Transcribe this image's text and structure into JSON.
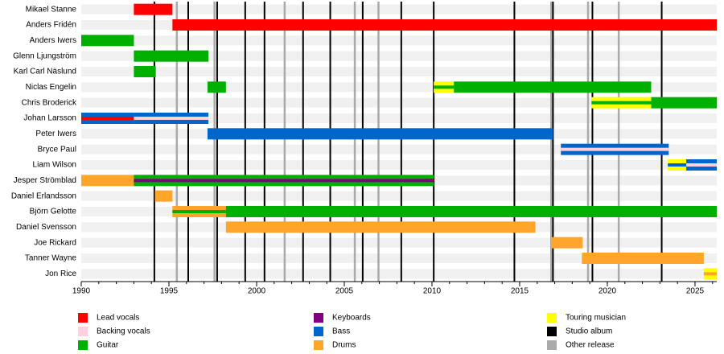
{
  "chart_data": {
    "type": "timeline",
    "xlim": [
      1990,
      2026.24
    ],
    "xticks": [
      1990,
      1995,
      2000,
      2005,
      2010,
      2015,
      2020,
      2025
    ],
    "members": [
      {
        "name": "Mikael Stanne",
        "bars": [
          {
            "role": "Lead vocals",
            "start": 1993.0,
            "end": 1995.2
          }
        ]
      },
      {
        "name": "Anders Fridén",
        "bars": [
          {
            "role": "Lead vocals",
            "start": 1995.2,
            "end": 2026.24
          }
        ]
      },
      {
        "name": "Anders Iwers",
        "bars": [
          {
            "role": "Guitar",
            "start": 1990,
            "end": 1993.0
          }
        ]
      },
      {
        "name": "Glenn Ljungström",
        "bars": [
          {
            "role": "Guitar",
            "start": 1993.0,
            "end": 1997.25
          }
        ]
      },
      {
        "name": "Karl Carl Näslund",
        "bars": [
          {
            "role": "Guitar",
            "start": 1993.0,
            "end": 1994.25
          }
        ]
      },
      {
        "name": "Niclas Engelin",
        "bars": [
          {
            "role": "Guitar",
            "start": 1997.2,
            "end": 1998.25
          },
          {
            "role": "Touring musician",
            "stripe": "Guitar",
            "start": 2010.1,
            "end": 2011.25
          },
          {
            "role": "Guitar",
            "start": 2011.25,
            "end": 2022.5
          }
        ]
      },
      {
        "name": "Chris Broderick",
        "bars": [
          {
            "role": "Touring musician",
            "stripe": "Guitar",
            "start": 2019.1,
            "end": 2022.5
          },
          {
            "role": "Guitar",
            "start": 2022.5,
            "end": 2026.24
          }
        ]
      },
      {
        "name": "Johan Larsson",
        "bars": [
          {
            "role": "Bass",
            "stripe": "Lead vocals",
            "start": 1990,
            "end": 1993.0
          },
          {
            "role": "Bass",
            "stripe": "Backing vocals",
            "start": 1993.0,
            "end": 1997.25
          }
        ]
      },
      {
        "name": "Peter Iwers",
        "bars": [
          {
            "role": "Bass",
            "start": 1997.2,
            "end": 2016.9
          }
        ]
      },
      {
        "name": "Bryce Paul",
        "bars": [
          {
            "role": "Bass",
            "stripe": "Backing vocals",
            "start": 2017.35,
            "end": 2023.5
          }
        ]
      },
      {
        "name": "Liam Wilson",
        "bars": [
          {
            "role": "Touring musician",
            "stripe": "Bass",
            "start": 2023.45,
            "end": 2024.5
          },
          {
            "role": "Bass",
            "stripe": "Backing vocals",
            "start": 2024.5,
            "end": 2026.24
          }
        ]
      },
      {
        "name": "Jesper Strömblad",
        "bars": [
          {
            "role": "Drums",
            "start": 1990,
            "end": 1994.2
          },
          {
            "role": "Guitar",
            "stripe": "Keyboards",
            "start": 1993.0,
            "end": 2010.1
          }
        ]
      },
      {
        "name": "Daniel Erlandsson",
        "bars": [
          {
            "role": "Drums",
            "start": 1994.2,
            "end": 1995.2
          }
        ]
      },
      {
        "name": "Björn Gelotte",
        "bars": [
          {
            "role": "Drums",
            "stripe": "Guitar",
            "start": 1995.2,
            "end": 1998.25
          },
          {
            "role": "Guitar",
            "start": 1998.25,
            "end": 2026.24
          }
        ]
      },
      {
        "name": "Daniel Svensson",
        "bars": [
          {
            "role": "Drums",
            "start": 1998.25,
            "end": 2015.9
          }
        ]
      },
      {
        "name": "Joe Rickard",
        "bars": [
          {
            "role": "Drums",
            "start": 2016.8,
            "end": 2018.6
          }
        ]
      },
      {
        "name": "Tanner Wayne",
        "bars": [
          {
            "role": "Drums",
            "start": 2018.55,
            "end": 2025.5
          }
        ]
      },
      {
        "name": "Jon Rice",
        "bars": [
          {
            "role": "Touring musician",
            "stripe": "Drums",
            "start": 2025.5,
            "end": 2026.24
          }
        ]
      }
    ],
    "studio_albums": [
      1994.17,
      1996.1,
      1997.75,
      1999.35,
      2000.45,
      2002.65,
      2004.2,
      2006.05,
      2008.25,
      2010.1,
      2014.7,
      2016.9,
      2019.15,
      2023.1
    ],
    "other_releases": [
      1995.45,
      1997.6,
      2001.6,
      2005.6,
      2006.95,
      2016.8,
      2018.9,
      2020.65
    ],
    "legend": [
      {
        "name": "Lead vocals",
        "color": "#ff0000"
      },
      {
        "name": "Backing vocals",
        "color": "#ffd1dc"
      },
      {
        "name": "Guitar",
        "color": "#00b000"
      },
      {
        "name": "Keyboards",
        "color": "#800080"
      },
      {
        "name": "Bass",
        "color": "#0066cc"
      },
      {
        "name": "Drums",
        "color": "#ffa52a"
      },
      {
        "name": "Touring musician",
        "color": "#ffff00"
      },
      {
        "name": "Studio album",
        "color": "#000000"
      },
      {
        "name": "Other release",
        "color": "#aaaaaa"
      }
    ]
  }
}
